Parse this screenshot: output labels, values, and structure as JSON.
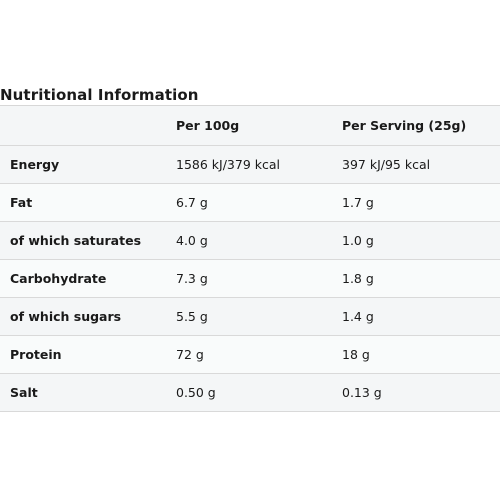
{
  "title": "Nutritional Information",
  "header": {
    "col1": "",
    "col2": "Per 100g",
    "col3": "Per Serving (25g)"
  },
  "rows": [
    {
      "nutrient": "Energy",
      "per100g": "1586 kJ/379 kcal",
      "perServing": "397 kJ/95 kcal"
    },
    {
      "nutrient": "Fat",
      "per100g": "6.7 g",
      "perServing": "1.7 g"
    },
    {
      "nutrient": "of which saturates",
      "per100g": "4.0 g",
      "perServing": "1.0 g"
    },
    {
      "nutrient": "Carbohydrate",
      "per100g": "7.3 g",
      "perServing": "1.8 g"
    },
    {
      "nutrient": "of which sugars",
      "per100g": "5.5 g",
      "perServing": "1.4 g"
    },
    {
      "nutrient": "Protein",
      "per100g": "72 g",
      "perServing": "18 g"
    },
    {
      "nutrient": "Salt",
      "per100g": "0.50 g",
      "perServing": "0.13 g"
    }
  ]
}
